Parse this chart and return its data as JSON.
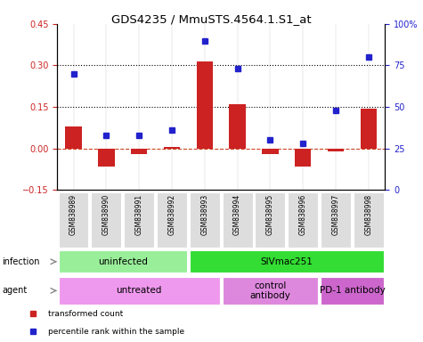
{
  "title": "GDS4235 / MmuSTS.4564.1.S1_at",
  "samples": [
    "GSM838989",
    "GSM838990",
    "GSM838991",
    "GSM838992",
    "GSM838993",
    "GSM838994",
    "GSM838995",
    "GSM838996",
    "GSM838997",
    "GSM838998"
  ],
  "transformed_count": [
    0.08,
    -0.065,
    -0.02,
    0.005,
    0.315,
    0.16,
    -0.02,
    -0.065,
    -0.01,
    0.145
  ],
  "percentile_rank": [
    70,
    33,
    33,
    36,
    90,
    73,
    30,
    28,
    48,
    80
  ],
  "ylim_left": [
    -0.15,
    0.45
  ],
  "ylim_right": [
    0,
    100
  ],
  "yticks_left": [
    -0.15,
    0.0,
    0.15,
    0.3,
    0.45
  ],
  "yticks_right": [
    0,
    25,
    50,
    75,
    100
  ],
  "hlines": [
    0.15,
    0.3
  ],
  "bar_color": "#cc2222",
  "dot_color": "#2222cc",
  "bar_width": 0.5,
  "infection_groups": [
    {
      "label": "uninfected",
      "start": 0,
      "end": 4,
      "color": "#99ee99"
    },
    {
      "label": "SIVmac251",
      "start": 4,
      "end": 10,
      "color": "#33dd33"
    }
  ],
  "agent_groups": [
    {
      "label": "untreated",
      "start": 0,
      "end": 5,
      "color": "#ee99ee"
    },
    {
      "label": "control\nantibody",
      "start": 5,
      "end": 8,
      "color": "#dd88dd"
    },
    {
      "label": "PD-1 antibody",
      "start": 8,
      "end": 10,
      "color": "#cc66cc"
    }
  ],
  "legend_items": [
    {
      "label": "transformed count",
      "color": "#cc2222"
    },
    {
      "label": "percentile rank within the sample",
      "color": "#2222cc"
    }
  ],
  "infection_label": "infection",
  "agent_label": "agent"
}
